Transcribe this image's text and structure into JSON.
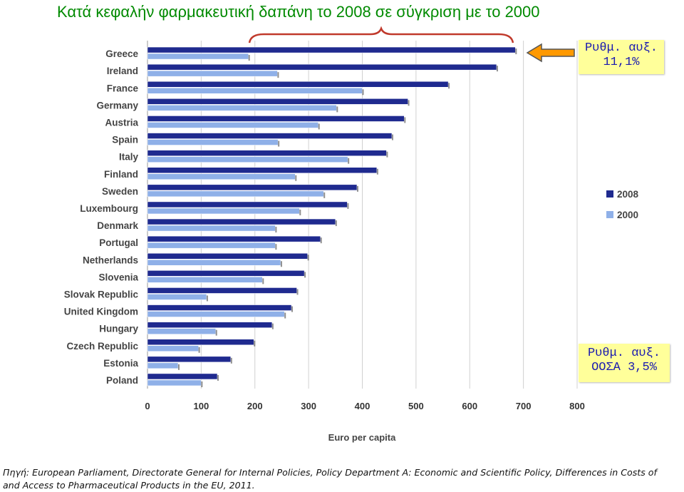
{
  "title": "Κατά κεφαλήν φαρμακευτική δαπάνη το 2008 σε σύγκριση με το 2000",
  "callouts": {
    "greece": {
      "line1": "Ρυθμ. αυξ.",
      "line2": "11,1%"
    },
    "oecd": {
      "line1": "Ρυθμ. αυξ.",
      "line2": "ΟΟΣΑ 3,5%"
    }
  },
  "source_text": "Πηγή: European Parliament, Directorate General for Internal Policies, Policy Department A: Economic and Scientific Policy, Differences in Costs of and Access to Pharmaceutical Products in the EU, 2011.",
  "colors": {
    "series_2008": "#1f2a8f",
    "series_2000": "#8fb0e8",
    "title": "#008a00",
    "callout_bg": "#ffff9a",
    "callout_text": "#1a1ab0",
    "brace": "#c0392b",
    "arrow": "#ff9900"
  },
  "chart_data": {
    "type": "bar",
    "orientation": "horizontal",
    "categories": [
      "Greece",
      "Ireland",
      "France",
      "Germany",
      "Austria",
      "Spain",
      "Italy",
      "Finland",
      "Sweden",
      "Luxembourg",
      "Denmark",
      "Portugal",
      "Netherlands",
      "Slovenia",
      "Slovak Republic",
      "United Kingdom",
      "Hungary",
      "Czech Republic",
      "Estonia",
      "Poland"
    ],
    "series": [
      {
        "name": "2008",
        "values": [
          685,
          650,
          560,
          485,
          478,
          455,
          445,
          427,
          390,
          372,
          350,
          322,
          298,
          292,
          278,
          268,
          232,
          198,
          155,
          130
        ]
      },
      {
        "name": "2000",
        "values": [
          188,
          242,
          400,
          352,
          318,
          243,
          373,
          275,
          328,
          283,
          238,
          238,
          248,
          214,
          110,
          255,
          127,
          95,
          57,
          100
        ]
      }
    ],
    "xlabel": "Euro per capita",
    "ylabel": "",
    "xlim": [
      0,
      800
    ],
    "xticks": [
      "0",
      "100",
      "200",
      "300",
      "400",
      "500",
      "600",
      "700",
      "800"
    ],
    "grid": true,
    "legend": {
      "position": "right",
      "entries": [
        "2008",
        "2000"
      ]
    }
  }
}
